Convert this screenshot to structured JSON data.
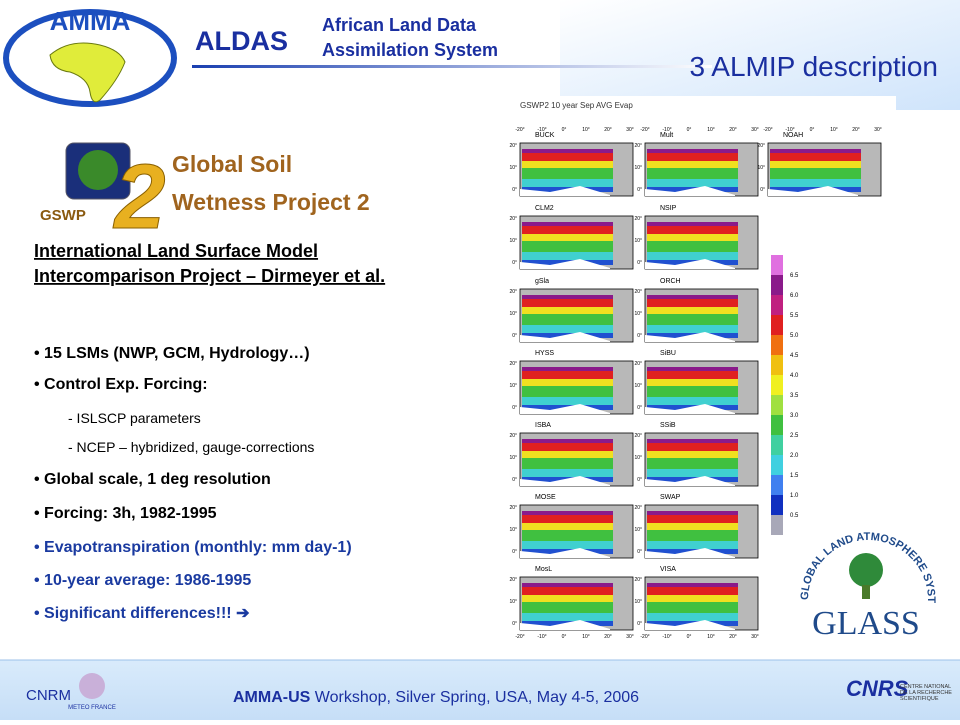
{
  "header": {
    "logo_text": "AMMA",
    "acronym": "ALDAS",
    "subtitle_lines": [
      "African Land Data",
      "Assimilation System"
    ],
    "slide_title": "3 ALMIP description"
  },
  "gswp": {
    "label": "GSWP",
    "numeral": "2",
    "title_lines": [
      "Global Soil",
      "Wetness Project 2"
    ]
  },
  "intro_lines": [
    "International Land Surface Model",
    "Intercomparison Project – Dirmeyer et al."
  ],
  "bullets": [
    {
      "text": "• 15 LSMs (NWP, GCM, Hydrology…)",
      "level": 1,
      "highlight": false
    },
    {
      "text": "• Control Exp. Forcing:",
      "level": 1,
      "highlight": false
    },
    {
      "text": "- ISLSCP parameters",
      "level": 2,
      "highlight": false
    },
    {
      "text": "- NCEP – hybridized, gauge-corrections",
      "level": 2,
      "highlight": false
    },
    {
      "text": "• Global scale, 1 deg resolution",
      "level": 1,
      "highlight": false
    },
    {
      "text": "• Forcing: 3h, 1982-1995",
      "level": 1,
      "highlight": false
    },
    {
      "text": "• Evapotranspiration (monthly: mm day-1)",
      "level": 1,
      "highlight": true
    },
    {
      "text": "• 10-year average: 1986-1995",
      "level": 1,
      "highlight": true
    },
    {
      "text": "• Significant differences!!! ➔",
      "level": 1,
      "highlight": true
    }
  ],
  "figure": {
    "title": "GSWP2 10 year Sep AVG Evap",
    "panels": [
      "BUCK",
      "Mult",
      "NOAH",
      "CLM2",
      "NSIP",
      "gSla",
      "ORCH",
      "HYSS",
      "SiBU",
      "ISBA",
      "SSiB",
      "MOSE",
      "SWAP",
      "MosL",
      "VISA"
    ],
    "lon_labels": [
      "-20°",
      "-10°",
      "0°",
      "10°",
      "20°",
      "30°"
    ],
    "lat_labels": [
      "20°",
      "10°",
      "0°"
    ],
    "colorbar_labels": [
      "6.5",
      "6.0",
      "5.5",
      "5.0",
      "4.5",
      "4.0",
      "3.5",
      "3.0",
      "2.5",
      "2.0",
      "1.5",
      "1.0",
      "0.5"
    ]
  },
  "glass": {
    "ring_text": "GLOBAL LAND ATMOSPHERE SYSTEM STUDY",
    "name": "GLASS"
  },
  "footer": {
    "cnrm": "CNRM",
    "meteo": "METEO FRANCE",
    "event_bold": "AMMA-US",
    "event_rest": " Workshop, Silver Spring, USA, May 4-5, 2006",
    "cnrs": "CNRS",
    "cnrs_full": "CENTRE NATIONAL DE LA RECHERCHE SCIENTIFIQUE"
  }
}
